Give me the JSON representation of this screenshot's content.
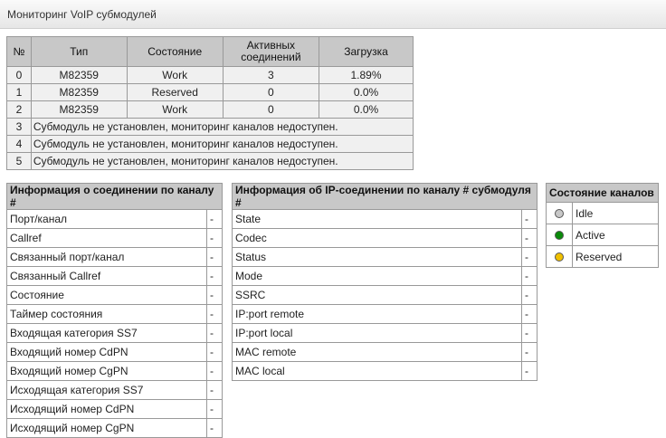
{
  "title": "Мониторинг VoIP субмодулей",
  "submodules": {
    "headers": [
      "№",
      "Тип",
      "Состояние",
      "Активных соединений",
      "Загрузка"
    ],
    "rows": [
      {
        "n": "0",
        "type": "M82359",
        "state": "Work",
        "active": "3",
        "load": "1.89%"
      },
      {
        "n": "1",
        "type": "M82359",
        "state": "Reserved",
        "active": "0",
        "load": "0.0%"
      },
      {
        "n": "2",
        "type": "M82359",
        "state": "Work",
        "active": "0",
        "load": "0.0%"
      }
    ],
    "missing": [
      {
        "n": "3",
        "msg": "Субмодуль не установлен, мониторинг каналов недоступен."
      },
      {
        "n": "4",
        "msg": "Субмодуль не установлен, мониторинг каналов недоступен."
      },
      {
        "n": "5",
        "msg": "Субмодуль не установлен, мониторинг каналов недоступен."
      }
    ]
  },
  "connection": {
    "title": "Информация о соединении по каналу #",
    "rows": [
      {
        "label": "Порт/канал",
        "value": "-"
      },
      {
        "label": "Callref",
        "value": "-"
      },
      {
        "label": "Связанный порт/канал",
        "value": "-"
      },
      {
        "label": "Связанный Callref",
        "value": "-"
      },
      {
        "label": "Состояние",
        "value": "-"
      },
      {
        "label": "Таймер состояния",
        "value": "-"
      },
      {
        "label": "Входящая категория SS7",
        "value": "-"
      },
      {
        "label": "Входящий номер CdPN",
        "value": "-"
      },
      {
        "label": "Входящий номер CgPN",
        "value": "-"
      },
      {
        "label": "Исходящая категория SS7",
        "value": "-"
      },
      {
        "label": "Исходящий номер CdPN",
        "value": "-"
      },
      {
        "label": "Исходящий номер CgPN",
        "value": "-"
      }
    ]
  },
  "ip": {
    "title": "Информация об IP-соединении по каналу # субмодуля #",
    "rows": [
      {
        "label": "State",
        "value": "-"
      },
      {
        "label": "Codec",
        "value": "-"
      },
      {
        "label": "Status",
        "value": "-"
      },
      {
        "label": "Mode",
        "value": "-"
      },
      {
        "label": "SSRC",
        "value": "-"
      },
      {
        "label": "IP:port remote",
        "value": "-"
      },
      {
        "label": "IP:port local",
        "value": "-"
      },
      {
        "label": "MAC remote",
        "value": "-"
      },
      {
        "label": "MAC local",
        "value": "-"
      }
    ]
  },
  "legend": {
    "title": "Состояние каналов",
    "items": [
      {
        "label": "Idle",
        "color": "#c8c8c8"
      },
      {
        "label": "Active",
        "color": "#0a8a0a"
      },
      {
        "label": "Reserved",
        "color": "#f0c000"
      }
    ]
  }
}
